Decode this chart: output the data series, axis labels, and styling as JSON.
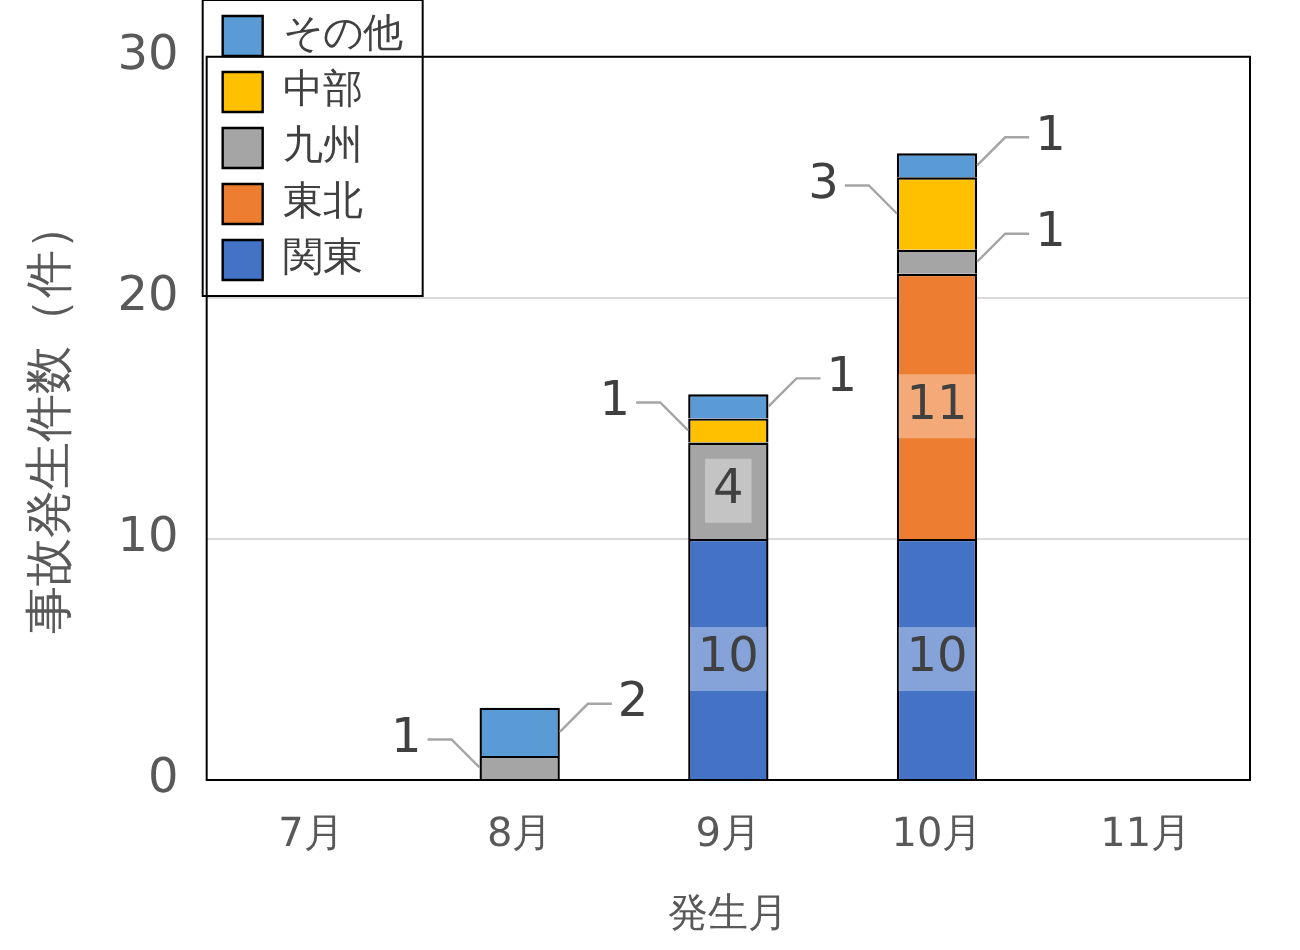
{
  "chart_data": {
    "type": "bar",
    "stacked": true,
    "xlabel": "発生月",
    "ylabel": "事故発生件数（件）",
    "categories": [
      "7月",
      "8月",
      "9月",
      "10月",
      "11月"
    ],
    "series": [
      {
        "name": "関東",
        "color": "#4472c4",
        "values": [
          null,
          null,
          10,
          10,
          null
        ]
      },
      {
        "name": "東北",
        "color": "#ed7d31",
        "values": [
          null,
          null,
          null,
          11,
          null
        ]
      },
      {
        "name": "九州",
        "color": "#a5a5a5",
        "values": [
          null,
          1,
          4,
          1,
          null
        ]
      },
      {
        "name": "中部",
        "color": "#ffc000",
        "values": [
          null,
          null,
          1,
          3,
          null
        ]
      },
      {
        "name": "その他",
        "color": "#5b9bd5",
        "values": [
          null,
          2,
          1,
          1,
          null
        ]
      }
    ],
    "ylim": [
      0,
      30
    ],
    "yticks": [
      0,
      10,
      20,
      30
    ],
    "grid": "y",
    "legend": "top left",
    "data_labels": true
  }
}
